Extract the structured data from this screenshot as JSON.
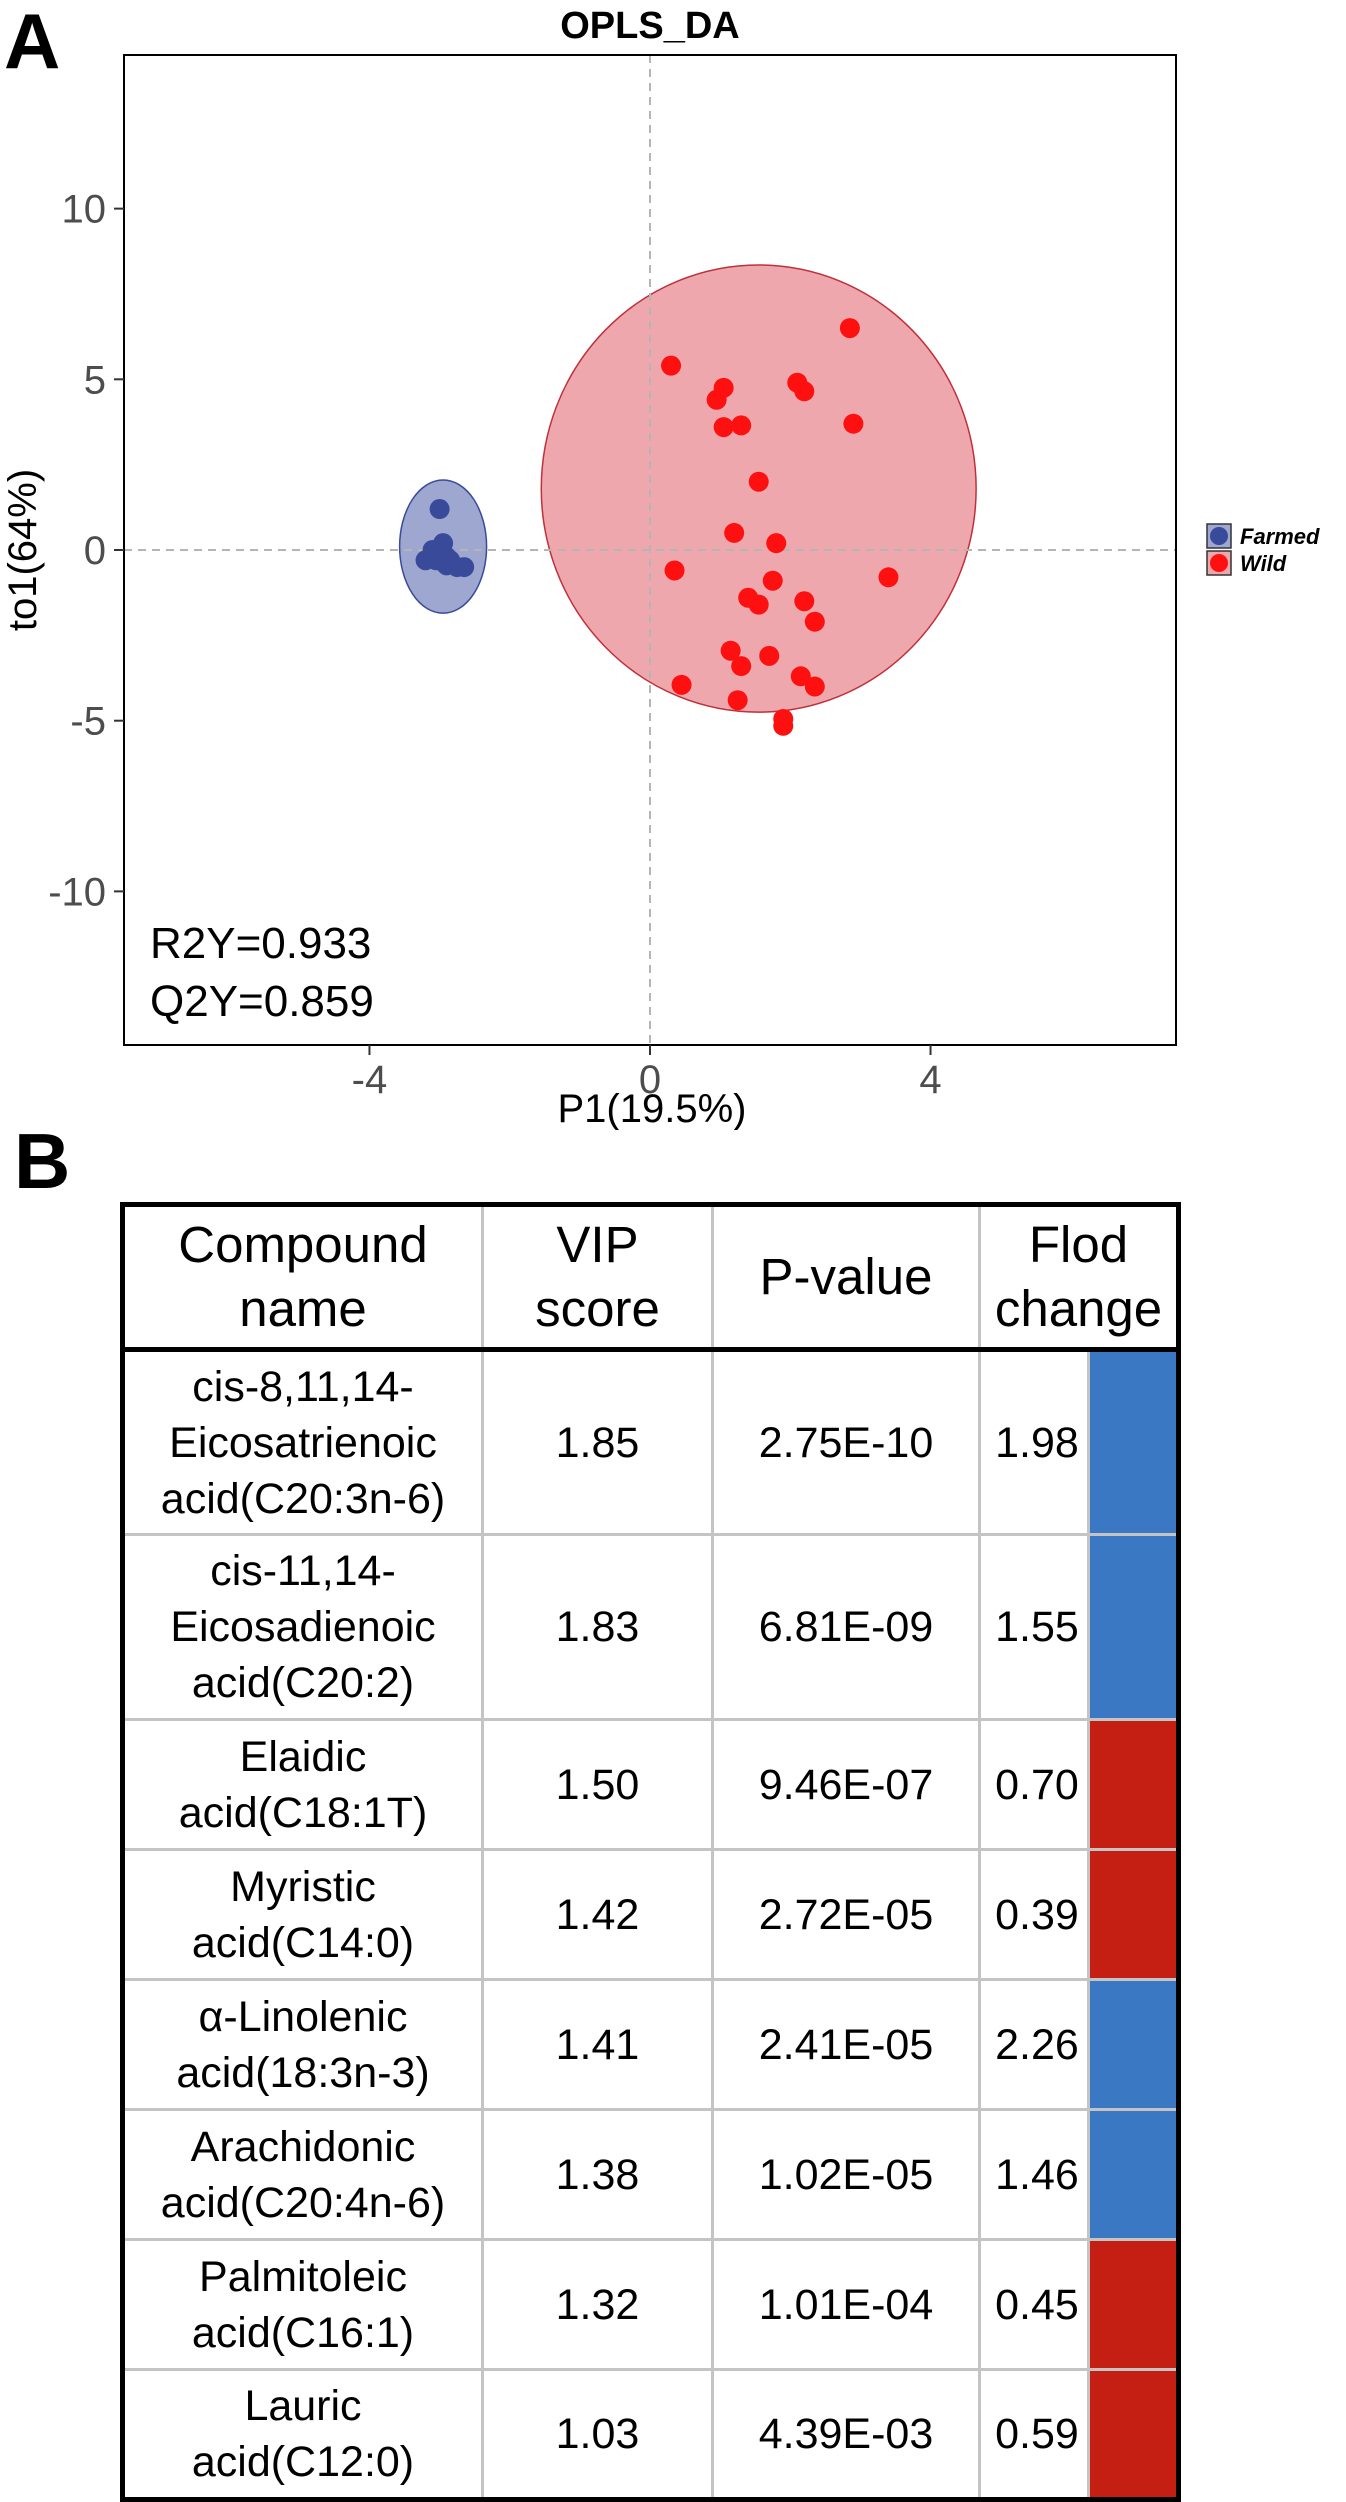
{
  "panel_labels": {
    "a": "A",
    "b": "B"
  },
  "chart_data": {
    "type": "scatter",
    "title": "OPLS_DA",
    "xlabel": "P1(19.5%)",
    "ylabel": "to1(64%)",
    "xlim": [
      -7.5,
      7.5
    ],
    "ylim": [
      -14.5,
      14.5
    ],
    "xticks": [
      -4,
      0,
      4
    ],
    "yticks": [
      -10,
      -5,
      0,
      5,
      10
    ],
    "x_tick_labels": [
      "-4",
      "0",
      "4"
    ],
    "y_tick_labels": [
      "-10",
      "-5",
      "0",
      "5",
      "10"
    ],
    "grid": false,
    "reference_lines": {
      "x": 0,
      "y": 0
    },
    "legend_position": "right",
    "annotations": [
      "R2Y=0.933",
      "Q2Y=0.859"
    ],
    "series": [
      {
        "name": "Farmed",
        "color": "#3a4a9a",
        "ellipse": {
          "cx": -2.95,
          "cy": 0.1,
          "rx": 0.62,
          "ry": 1.95,
          "fill": "#9ea7d0",
          "stroke": "#3a4a9a"
        },
        "points": [
          [
            -3.0,
            1.2
          ],
          [
            -2.95,
            0.2
          ],
          [
            -3.1,
            0.0
          ],
          [
            -2.9,
            -0.2
          ],
          [
            -2.85,
            -0.3
          ],
          [
            -3.05,
            -0.3
          ],
          [
            -3.2,
            -0.3
          ],
          [
            -2.75,
            -0.5
          ],
          [
            -2.9,
            -0.45
          ],
          [
            -2.65,
            -0.5
          ]
        ]
      },
      {
        "name": "Wild",
        "color": "#ff1010",
        "ellipse": {
          "cx": 1.55,
          "cy": 1.8,
          "rx": 3.1,
          "ry": 6.55,
          "fill": "#eea8ad",
          "stroke": "#c0303a"
        },
        "points": [
          [
            0.3,
            5.4
          ],
          [
            1.05,
            4.75
          ],
          [
            0.95,
            4.4
          ],
          [
            1.05,
            3.6
          ],
          [
            1.3,
            3.65
          ],
          [
            2.1,
            4.9
          ],
          [
            2.2,
            4.65
          ],
          [
            2.85,
            6.5
          ],
          [
            2.9,
            3.7
          ],
          [
            1.55,
            2.0
          ],
          [
            1.2,
            0.5
          ],
          [
            1.8,
            0.2
          ],
          [
            0.35,
            -0.6
          ],
          [
            1.75,
            -0.9
          ],
          [
            3.4,
            -0.8
          ],
          [
            1.4,
            -1.4
          ],
          [
            1.55,
            -1.6
          ],
          [
            2.2,
            -1.5
          ],
          [
            2.35,
            -2.1
          ],
          [
            1.15,
            -2.95
          ],
          [
            1.3,
            -3.4
          ],
          [
            1.7,
            -3.1
          ],
          [
            2.15,
            -3.7
          ],
          [
            2.35,
            -4.0
          ],
          [
            0.45,
            -3.95
          ],
          [
            1.25,
            -4.4
          ],
          [
            1.9,
            -4.95
          ],
          [
            1.9,
            -5.15
          ]
        ]
      }
    ]
  },
  "table": {
    "headers": {
      "compound": [
        "Compound",
        "name"
      ],
      "vip": [
        "VIP",
        "score"
      ],
      "pvalue": "P-value",
      "fold": [
        "Flod",
        "change"
      ]
    },
    "rows": [
      {
        "name": [
          "cis-8,11,14-",
          "Eicosatrienoic",
          "acid(C20:3n-6)"
        ],
        "vip": "1.85",
        "p": "2.75E-10",
        "fc": "1.98",
        "color": "#3b78c4"
      },
      {
        "name": [
          "cis-11,14-",
          "Eicosadienoic",
          "acid(C20:2)"
        ],
        "vip": "1.83",
        "p": "6.81E-09",
        "fc": "1.55",
        "color": "#3b78c4"
      },
      {
        "name": [
          "Elaidic",
          "acid(C18:1T)"
        ],
        "vip": "1.50",
        "p": "9.46E-07",
        "fc": "0.70",
        "color": "#c41f12"
      },
      {
        "name": [
          "Myristic",
          "acid(C14:0)"
        ],
        "vip": "1.42",
        "p": "2.72E-05",
        "fc": "0.39",
        "color": "#c41f12"
      },
      {
        "name": [
          "α-Linolenic",
          "acid(18:3n-3)"
        ],
        "vip": "1.41",
        "p": "2.41E-05",
        "fc": "2.26",
        "color": "#3b78c4"
      },
      {
        "name": [
          "Arachidonic",
          "acid(C20:4n-6)"
        ],
        "vip": "1.38",
        "p": "1.02E-05",
        "fc": "1.46",
        "color": "#3b78c4"
      },
      {
        "name": [
          "Palmitoleic",
          "acid(C16:1)"
        ],
        "vip": "1.32",
        "p": "1.01E-04",
        "fc": "0.45",
        "color": "#c41f12"
      },
      {
        "name": [
          "Lauric",
          "acid(C12:0)"
        ],
        "vip": "1.03",
        "p": "4.39E-03",
        "fc": "0.59",
        "color": "#c41f12"
      }
    ]
  }
}
